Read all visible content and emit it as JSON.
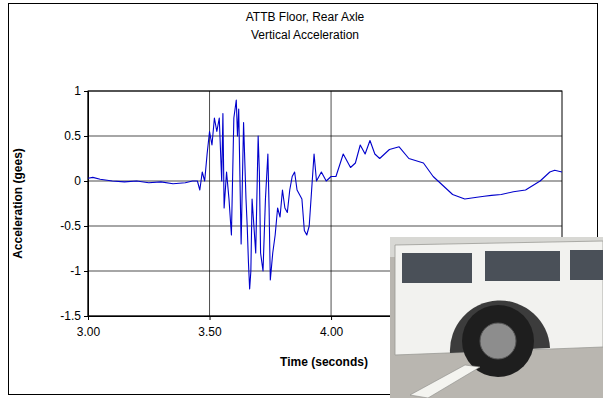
{
  "chart_data": {
    "type": "line",
    "title": [
      "ATTB Floor, Rear Axle",
      "Vertical Acceleration"
    ],
    "x_label": "Time (seconds)",
    "y_label": "Acceleration (gees)",
    "x": [
      3.0,
      3.02,
      3.05,
      3.1,
      3.15,
      3.2,
      3.25,
      3.3,
      3.35,
      3.4,
      3.43,
      3.45,
      3.46,
      3.47,
      3.48,
      3.49,
      3.5,
      3.51,
      3.52,
      3.53,
      3.54,
      3.55,
      3.555,
      3.56,
      3.57,
      3.58,
      3.59,
      3.6,
      3.61,
      3.615,
      3.62,
      3.63,
      3.64,
      3.65,
      3.655,
      3.66,
      3.665,
      3.67,
      3.675,
      3.68,
      3.69,
      3.7,
      3.705,
      3.71,
      3.72,
      3.73,
      3.74,
      3.745,
      3.75,
      3.76,
      3.77,
      3.78,
      3.79,
      3.8,
      3.81,
      3.82,
      3.83,
      3.84,
      3.85,
      3.86,
      3.87,
      3.88,
      3.89,
      3.9,
      3.91,
      3.92,
      3.93,
      3.94,
      3.96,
      3.98,
      4.0,
      4.02,
      4.05,
      4.08,
      4.1,
      4.12,
      4.14,
      4.16,
      4.18,
      4.2,
      4.24,
      4.28,
      4.32,
      4.38,
      4.42,
      4.46,
      4.5,
      4.55,
      4.6,
      4.63,
      4.66,
      4.7,
      4.75,
      4.8,
      4.83,
      4.86,
      4.88,
      4.9,
      4.92,
      4.95
    ],
    "values": [
      0.03,
      0.04,
      0.02,
      0.0,
      -0.01,
      0.0,
      -0.02,
      -0.01,
      -0.03,
      -0.02,
      0.0,
      0.0,
      -0.1,
      0.1,
      0.0,
      0.3,
      0.55,
      0.4,
      0.7,
      0.55,
      0.7,
      0.0,
      0.75,
      -0.3,
      0.1,
      -0.2,
      -0.6,
      0.7,
      0.9,
      0.5,
      0.8,
      -0.7,
      0.65,
      -0.2,
      -0.5,
      -0.9,
      -1.2,
      -1.0,
      -0.2,
      -0.4,
      -0.8,
      0.5,
      0.1,
      -0.8,
      -1.0,
      -0.2,
      0.3,
      -0.3,
      -1.1,
      -0.8,
      -0.6,
      -0.3,
      -0.4,
      -0.1,
      -0.3,
      -0.35,
      -0.1,
      0.05,
      0.1,
      -0.1,
      -0.15,
      -0.2,
      -0.55,
      -0.6,
      -0.5,
      -0.1,
      0.3,
      0.0,
      0.1,
      0.0,
      0.05,
      0.05,
      0.3,
      0.15,
      0.2,
      0.4,
      0.3,
      0.45,
      0.3,
      0.25,
      0.35,
      0.38,
      0.25,
      0.2,
      0.05,
      -0.05,
      -0.15,
      -0.2,
      -0.18,
      -0.17,
      -0.16,
      -0.15,
      -0.12,
      -0.1,
      -0.05,
      0.0,
      0.05,
      0.1,
      0.12,
      0.1
    ],
    "color": "#0000cc",
    "xlim": [
      3.0,
      4.95
    ],
    "xticks": [
      {
        "value": 3.0,
        "label": "3.00"
      },
      {
        "value": 3.5,
        "label": "3.50"
      },
      {
        "value": 4.0,
        "label": "4.00"
      }
    ],
    "ylim": [
      -1.5,
      1
    ],
    "yticks": [
      -1.5,
      -1,
      -0.5,
      0,
      0.5,
      1
    ],
    "grid": true
  }
}
